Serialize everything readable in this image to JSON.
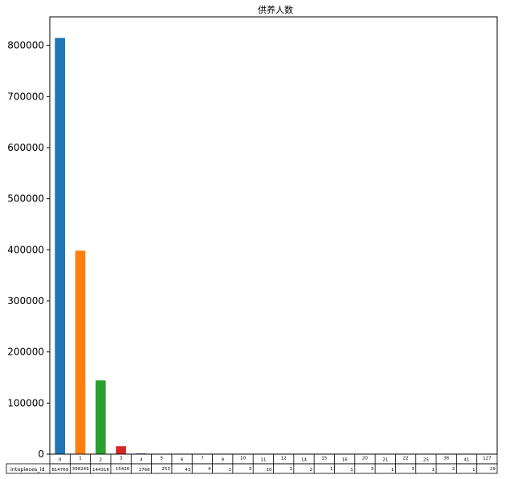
{
  "chart_data": {
    "type": "bar",
    "title": "供养人数",
    "xlabel": "",
    "ylabel": "",
    "ylim": [
      0,
      856000
    ],
    "yticks": [
      0,
      100000,
      200000,
      300000,
      400000,
      500000,
      600000,
      700000,
      800000
    ],
    "ytick_labels": [
      "0",
      "100000",
      "200000",
      "300000",
      "400000",
      "500000",
      "600000",
      "700000",
      "800000"
    ],
    "grid": false,
    "legend": "none",
    "categories": [
      "0",
      "1",
      "2",
      "3",
      "4",
      "5",
      "6",
      "7",
      "9",
      "10",
      "11",
      "12",
      "14",
      "15",
      "16",
      "20",
      "21",
      "22",
      "25",
      "36",
      "41",
      "127"
    ],
    "values": [
      814769,
      398249,
      144316,
      15426,
      1766,
      253,
      43,
      4,
      1,
      3,
      10,
      1,
      2,
      1,
      1,
      3,
      1,
      3,
      1,
      2,
      1,
      29
    ],
    "colors": [
      "#1f77b4",
      "#ff7f0e",
      "#2ca02c",
      "#d62728",
      "#9467bd",
      "#8c564b",
      "#e377c2",
      "#7f7f7f",
      "#bcbd22",
      "#17becf"
    ],
    "table": {
      "row_label": "intopieces_id",
      "col_labels": [
        "0",
        "1",
        "2",
        "3",
        "4",
        "5",
        "6",
        "7",
        "9",
        "10",
        "11",
        "12",
        "14",
        "15",
        "16",
        "20",
        "21",
        "22",
        "25",
        "36",
        "41",
        "127"
      ],
      "cells": [
        "814769",
        "398249",
        "144316",
        "15426",
        "1766",
        "253",
        "43",
        "4",
        "1",
        "3",
        "10",
        "1",
        "2",
        "1",
        "1",
        "3",
        "1",
        "3",
        "1",
        "2",
        "1",
        "29"
      ]
    }
  }
}
